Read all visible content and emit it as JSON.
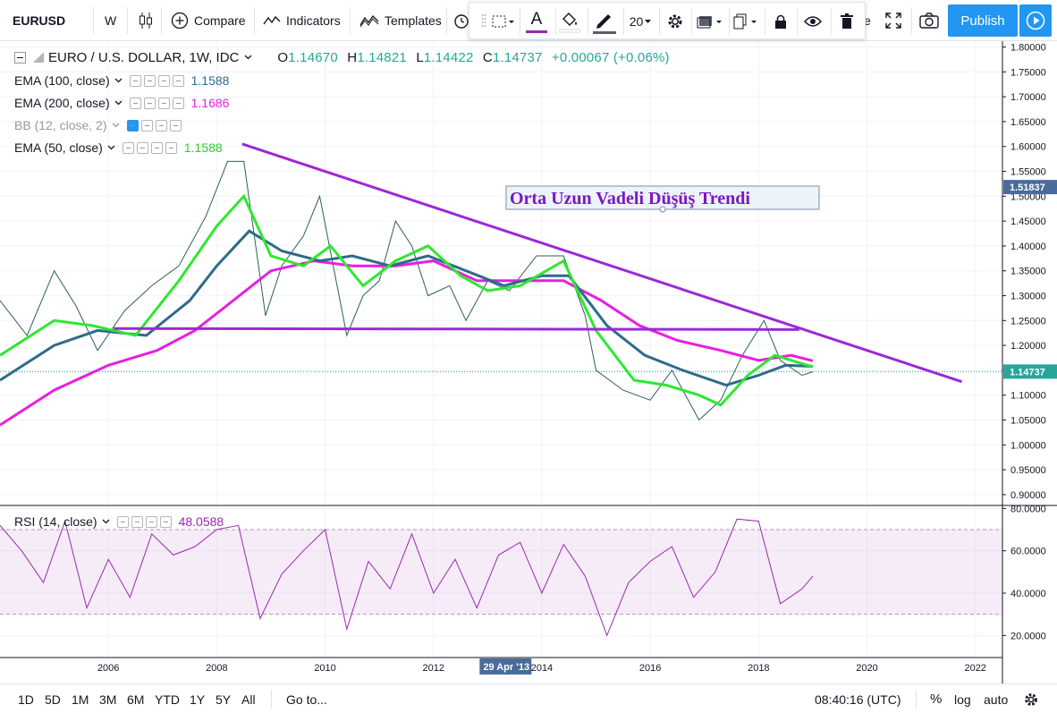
{
  "toolbar": {
    "symbol": "EURUSD",
    "interval": "W",
    "compare_label": "Compare",
    "indicators_label": "Indicators",
    "templates_label": "Templates",
    "clipped_text": "e",
    "publish_label": "Publish",
    "icons": [
      "candlestick-icon",
      "plus-circle-icon",
      "indicators-icon",
      "templates-icon",
      "alert-clock-icon",
      "fullscreen-icon",
      "camera-icon",
      "play-icon"
    ]
  },
  "drawing_toolbar": {
    "line_width": "20",
    "text_color": "#9c27b0",
    "icons": [
      "rectangle-select-icon",
      "text-color-icon",
      "fill-bucket-icon",
      "pen-icon",
      "settings-gear-icon",
      "rectangle-shape-icon",
      "copy-icon",
      "lock-icon",
      "eye-icon",
      "trash-icon"
    ]
  },
  "legend": {
    "title": "EURO / U.S. DOLLAR, 1W, IDC",
    "open_label": "O",
    "open": "1.14670",
    "high_label": "H",
    "high": "1.14821",
    "low_label": "L",
    "low": "1.14422",
    "close_label": "C",
    "close": "1.14737",
    "change": "+0.00067 (+0.06%)",
    "indicators": [
      {
        "name": "EMA (100, close)",
        "value": "1.1588",
        "color": "#2e6b8a"
      },
      {
        "name": "EMA (200, close)",
        "value": "1.1686",
        "color": "#e91ee0"
      },
      {
        "name": "BB (12, close, 2)",
        "value": "",
        "color": "#2196f3"
      },
      {
        "name": "EMA (50, close)",
        "value": "1.1588",
        "color": "#2ee82e"
      }
    ]
  },
  "chart_data": {
    "type": "line",
    "title": "EURO / U.S. DOLLAR, 1W, IDC",
    "price_axis": {
      "labels": [
        "1.80000",
        "1.75000",
        "1.70000",
        "1.65000",
        "1.60000",
        "1.55000",
        "1.50000",
        "1.45000",
        "1.40000",
        "1.35000",
        "1.30000",
        "1.25000",
        "1.20000",
        "1.15000",
        "1.10000",
        "1.05000",
        "1.00000",
        "0.95000",
        "0.90000"
      ],
      "range": [
        0.88,
        1.81
      ]
    },
    "current_price_label": "1.14737",
    "crosshair_price_label": "1.51837",
    "time_axis": {
      "labels": [
        "2006",
        "2008",
        "2010",
        "2012",
        "2014",
        "2016",
        "2018",
        "2020",
        "2022"
      ],
      "highlight_label": "29 Apr '13",
      "range": [
        2004.0,
        2022.5
      ]
    },
    "annotation": "Orta Uzun Vadeli Düşüş Trendi",
    "trendline_down": {
      "from": [
        2008.47,
        1.605
      ],
      "to": [
        2021.75,
        1.127
      ],
      "color": "#9c27d8"
    },
    "support_line": {
      "from": [
        2006.1,
        1.234
      ],
      "to": [
        2018.75,
        1.232
      ],
      "color": "#9c27d8"
    },
    "price_series": {
      "name": "EURUSD",
      "x": [
        2004.0,
        2004.5,
        2005.0,
        2005.4,
        2005.8,
        2006.3,
        2006.8,
        2007.3,
        2007.8,
        2008.2,
        2008.5,
        2008.9,
        2009.2,
        2009.6,
        2009.9,
        2010.4,
        2010.7,
        2011.0,
        2011.3,
        2011.6,
        2011.9,
        2012.3,
        2012.6,
        2013.0,
        2013.4,
        2013.9,
        2014.4,
        2014.8,
        2015.0,
        2015.5,
        2016.0,
        2016.4,
        2016.9,
        2017.3,
        2017.7,
        2018.1,
        2018.4,
        2018.8,
        2019.0
      ],
      "y": [
        1.29,
        1.22,
        1.35,
        1.28,
        1.19,
        1.27,
        1.32,
        1.36,
        1.46,
        1.57,
        1.57,
        1.26,
        1.36,
        1.42,
        1.5,
        1.22,
        1.3,
        1.33,
        1.45,
        1.4,
        1.3,
        1.32,
        1.25,
        1.33,
        1.31,
        1.38,
        1.38,
        1.26,
        1.15,
        1.11,
        1.09,
        1.15,
        1.05,
        1.09,
        1.18,
        1.25,
        1.17,
        1.14,
        1.147
      ]
    },
    "ema50": {
      "name": "EMA (50, close)",
      "x": [
        2004.0,
        2005.0,
        2005.7,
        2006.5,
        2007.3,
        2008.0,
        2008.5,
        2009.0,
        2009.6,
        2010.1,
        2010.7,
        2011.3,
        2011.9,
        2012.5,
        2013.0,
        2013.6,
        2014.4,
        2015.0,
        2015.7,
        2016.3,
        2016.9,
        2017.3,
        2017.8,
        2018.3,
        2018.9,
        2019.0
      ],
      "y": [
        1.18,
        1.25,
        1.24,
        1.22,
        1.33,
        1.44,
        1.5,
        1.38,
        1.36,
        1.4,
        1.32,
        1.37,
        1.4,
        1.34,
        1.31,
        1.32,
        1.37,
        1.23,
        1.13,
        1.12,
        1.1,
        1.08,
        1.14,
        1.18,
        1.16,
        1.158
      ]
    },
    "ema100": {
      "name": "EMA (100, close)",
      "x": [
        2004.0,
        2005.0,
        2005.8,
        2006.7,
        2007.5,
        2008.0,
        2008.6,
        2009.2,
        2009.9,
        2010.5,
        2011.2,
        2011.9,
        2012.6,
        2013.3,
        2014.0,
        2014.5,
        2015.2,
        2015.9,
        2016.6,
        2017.4,
        2018.0,
        2018.5,
        2019.0
      ],
      "y": [
        1.13,
        1.2,
        1.23,
        1.22,
        1.29,
        1.36,
        1.43,
        1.39,
        1.37,
        1.38,
        1.36,
        1.38,
        1.35,
        1.32,
        1.34,
        1.34,
        1.24,
        1.18,
        1.15,
        1.12,
        1.14,
        1.16,
        1.158
      ]
    },
    "ema200": {
      "name": "EMA (200, close)",
      "x": [
        2004.0,
        2005.0,
        2006.0,
        2006.9,
        2007.6,
        2008.3,
        2009.0,
        2009.8,
        2010.5,
        2011.3,
        2012.0,
        2012.8,
        2013.6,
        2014.4,
        2015.1,
        2015.8,
        2016.5,
        2017.3,
        2018.0,
        2018.6,
        2019.0
      ],
      "y": [
        1.04,
        1.11,
        1.16,
        1.19,
        1.23,
        1.29,
        1.35,
        1.37,
        1.36,
        1.36,
        1.37,
        1.33,
        1.33,
        1.33,
        1.29,
        1.24,
        1.21,
        1.19,
        1.17,
        1.18,
        1.169
      ]
    },
    "rsi": {
      "name": "RSI (14, close)",
      "value": "48.0588",
      "axis_labels": [
        "80.0000",
        "60.0000",
        "40.0000",
        "20.0000"
      ],
      "range": [
        10,
        81
      ],
      "band": [
        30,
        70
      ],
      "x": [
        2004.0,
        2004.4,
        2004.8,
        2005.2,
        2005.6,
        2006.0,
        2006.4,
        2006.8,
        2007.2,
        2007.6,
        2008.0,
        2008.4,
        2008.8,
        2009.2,
        2009.6,
        2010.0,
        2010.4,
        2010.8,
        2011.2,
        2011.6,
        2012.0,
        2012.4,
        2012.8,
        2013.2,
        2013.6,
        2014.0,
        2014.4,
        2014.8,
        2015.2,
        2015.6,
        2016.0,
        2016.4,
        2016.8,
        2017.2,
        2017.6,
        2018.0,
        2018.4,
        2018.8,
        2019.0
      ],
      "y": [
        72,
        60,
        45,
        74,
        33,
        56,
        38,
        68,
        58,
        62,
        70,
        72,
        28,
        49,
        60,
        70,
        23,
        55,
        42,
        68,
        40,
        56,
        33,
        58,
        64,
        40,
        63,
        48,
        20,
        45,
        55,
        62,
        38,
        50,
        75,
        74,
        35,
        42,
        48
      ]
    }
  },
  "bottom": {
    "ranges": [
      "1D",
      "5D",
      "1M",
      "3M",
      "6M",
      "YTD",
      "1Y",
      "5Y",
      "All"
    ],
    "goto_label": "Go to...",
    "clock": "08:40:16 (UTC)",
    "percent_label": "%",
    "log_label": "log",
    "auto_label": "auto",
    "gear_icon": "gear-icon"
  }
}
